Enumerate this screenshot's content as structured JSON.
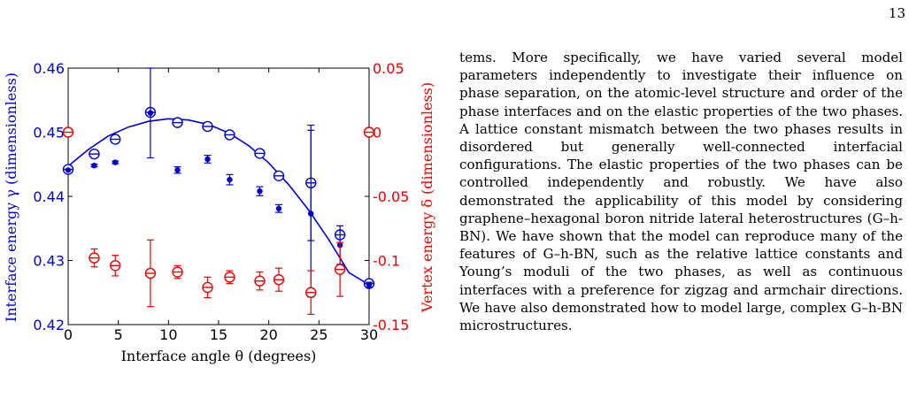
{
  "page": {
    "number": "13"
  },
  "paragraph": "tems. More specifically, we have varied several model parameters independently to investigate their influence on phase separation, on the atomic-level structure and order of the phase interfaces and on the elastic properties of the two phases. A lattice constant mismatch between the two phases results in disordered but generally well-connected interfacial configurations. The elastic properties of the two phases can be controlled independently and robustly. We have also demonstrated the applicability of this model by considering graphene–hexagonal boron nitride lateral heterostructures (G–h-BN). We have shown that the model can reproduce many of the features of G–h-BN, such as the relative lattice constants and Young’s moduli of the two phases, as well as continuous interfaces with a preference for zigzag and armchair directions. We have also demonstrated how to model large, complex G–h-BN microstructures.",
  "chart_data": {
    "type": "scatter",
    "xlabel": "Interface angle θ (degrees)",
    "ylabel_left": "Interface energy γ (dimensionless)",
    "ylabel_right": "Vertex energy δ (dimensionless)",
    "xlim": [
      0,
      30
    ],
    "ylim_left": [
      0.42,
      0.46
    ],
    "ylim_right": [
      -0.15,
      0.05
    ],
    "xticks": [
      0,
      5,
      10,
      15,
      20,
      25,
      30
    ],
    "yticks_left": [
      "0.42",
      "0.43",
      "0.44",
      "0.45",
      "0.46"
    ],
    "yticks_right": [
      "-0.15",
      "-0.1",
      "-0.05",
      "0",
      "0.05"
    ],
    "grid": false,
    "colors": {
      "left_axis": "#0000cc",
      "right_axis": "#ee0000"
    },
    "series": [
      {
        "axis": "left",
        "marker": "open-circle-bar",
        "color": "#0000cc",
        "points": [
          {
            "x": 0,
            "y": 0.4442,
            "err": 0.0004
          },
          {
            "x": 2.6,
            "y": 0.4466,
            "err": 0.0003
          },
          {
            "x": 4.7,
            "y": 0.4489,
            "err": 0.0003
          },
          {
            "x": 8.2,
            "y": 0.4531,
            "err": 0.0004
          },
          {
            "x": 10.9,
            "y": 0.4515,
            "err": 0.0002
          },
          {
            "x": 13.9,
            "y": 0.4509,
            "err": 0.0002
          },
          {
            "x": 16.1,
            "y": 0.4496,
            "err": 0.0002
          },
          {
            "x": 19.1,
            "y": 0.4467,
            "err": 0.0002
          },
          {
            "x": 21.0,
            "y": 0.4432,
            "err": 0.0003
          },
          {
            "x": 24.2,
            "y": 0.4421,
            "err": 0.009
          },
          {
            "x": 27.1,
            "y": 0.434,
            "err": 0.0005
          },
          {
            "x": 30,
            "y": 0.4264,
            "err": 0.0004
          }
        ]
      },
      {
        "axis": "left",
        "marker": "filled-dot",
        "color": "#0000cc",
        "points": [
          {
            "x": 0,
            "y": 0.4441,
            "err": 0
          },
          {
            "x": 2.6,
            "y": 0.4448,
            "err": 0.0002
          },
          {
            "x": 4.7,
            "y": 0.4453,
            "err": 0.0002
          },
          {
            "x": 8.2,
            "y": 0.453,
            "err": 0.007
          },
          {
            "x": 10.9,
            "y": 0.4441,
            "err": 0.0005
          },
          {
            "x": 13.9,
            "y": 0.4458,
            "err": 0.0006
          },
          {
            "x": 16.1,
            "y": 0.4426,
            "err": 0.0008
          },
          {
            "x": 19.1,
            "y": 0.4408,
            "err": 0.0007
          },
          {
            "x": 21.0,
            "y": 0.4381,
            "err": 0.0006
          },
          {
            "x": 24.2,
            "y": 0.4373,
            "err": 0.013
          },
          {
            "x": 27.1,
            "y": 0.4324,
            "err": 0.003
          },
          {
            "x": 30,
            "y": 0.4262,
            "err": 0.0004
          }
        ]
      },
      {
        "axis": "right",
        "marker": "open-circle-bar",
        "color": "#ee0000",
        "points": [
          {
            "x": 0,
            "y": 0.0,
            "err": 0
          },
          {
            "x": 2.6,
            "y": -0.098,
            "err": 0.007
          },
          {
            "x": 4.7,
            "y": -0.104,
            "err": 0.008
          },
          {
            "x": 8.2,
            "y": -0.11,
            "err": 0.026
          },
          {
            "x": 10.9,
            "y": -0.109,
            "err": 0.005
          },
          {
            "x": 13.9,
            "y": -0.121,
            "err": 0.008
          },
          {
            "x": 16.1,
            "y": -0.113,
            "err": 0.005
          },
          {
            "x": 19.1,
            "y": -0.116,
            "err": 0.007
          },
          {
            "x": 21.0,
            "y": -0.115,
            "err": 0.009
          },
          {
            "x": 24.2,
            "y": -0.125,
            "err": 0.017
          },
          {
            "x": 27.1,
            "y": -0.107,
            "err": 0.021
          },
          {
            "x": 30,
            "y": 0.0,
            "err": 0
          }
        ]
      }
    ],
    "fit_curve": {
      "axis": "left",
      "color": "#0000cc",
      "points": [
        [
          0,
          0.4447
        ],
        [
          2,
          0.4473
        ],
        [
          4,
          0.4494
        ],
        [
          6,
          0.4508
        ],
        [
          8,
          0.4517
        ],
        [
          10,
          0.4521
        ],
        [
          12,
          0.4519
        ],
        [
          14,
          0.4512
        ],
        [
          16,
          0.4499
        ],
        [
          18,
          0.4479
        ],
        [
          20,
          0.4452
        ],
        [
          22,
          0.4418
        ],
        [
          24,
          0.4378
        ],
        [
          26,
          0.4332
        ],
        [
          28,
          0.4281
        ],
        [
          30,
          0.4262
        ]
      ]
    }
  }
}
